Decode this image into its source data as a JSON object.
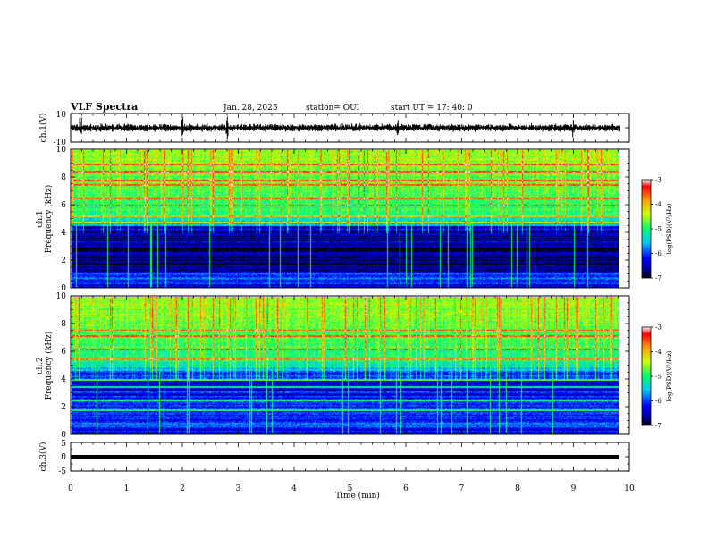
{
  "header": {
    "title": "VLF Spectra",
    "date": "Jan. 28, 2025",
    "station": "station= OUI",
    "start": "start  UT  =   17: 40: 0"
  },
  "chart_data": [
    {
      "type": "line",
      "panel": "ch1-waveform",
      "ylabel": "ch.1(V)",
      "ylim": [
        -10,
        10
      ],
      "ytick_labels": [
        "10",
        "-10"
      ],
      "xlim": [
        0,
        10
      ],
      "description_values": {
        "baseline_V": 0,
        "spikes_at_min": [
          0.18,
          2.0,
          2.8,
          5.85,
          9.0
        ]
      }
    },
    {
      "type": "heatmap",
      "panel": "ch1-spectrogram",
      "ylabel_line1": "ch.1",
      "ylabel_line2": "Frequency  (kHz)",
      "ylim": [
        0,
        10
      ],
      "ytick_labels": [
        "0",
        "2",
        "4",
        "6",
        "8",
        "10"
      ],
      "xlim": [
        0,
        10
      ],
      "data_end_min": 9.82,
      "colorbar": {
        "label": "log(PSD)(V²/Hz)",
        "range": [
          -7,
          -3
        ],
        "tick_labels": [
          "-3",
          "-4",
          "-5",
          "-6",
          "-7"
        ]
      }
    },
    {
      "type": "heatmap",
      "panel": "ch2-spectrogram",
      "ylabel_line1": "ch.2",
      "ylabel_line2": "Frequency  (kHz)",
      "ylim": [
        0,
        10
      ],
      "ytick_labels": [
        "0",
        "2",
        "4",
        "6",
        "8",
        "10"
      ],
      "xlim": [
        0,
        10
      ],
      "data_end_min": 9.82,
      "colorbar": {
        "label": "log(PSD)(V²/Hz)",
        "range": [
          -7,
          -3
        ],
        "tick_labels": [
          "-3",
          "-4",
          "-5",
          "-6",
          "-7"
        ]
      }
    },
    {
      "type": "line",
      "panel": "ch3-waveform",
      "ylabel": "ch.3(V)",
      "ylim": [
        -5,
        5
      ],
      "ytick_labels": [
        "5",
        "0",
        "-5"
      ],
      "xlim": [
        0,
        10
      ],
      "description_values": {
        "constant_V": 0
      }
    }
  ],
  "xaxis": {
    "label": "Time  (min)",
    "tick_labels": [
      "0",
      "1",
      "2",
      "3",
      "4",
      "5",
      "6",
      "7",
      "8",
      "9",
      "10"
    ],
    "range": [
      0,
      10
    ]
  },
  "colors": {
    "axis": "#000000",
    "background": "#ffffff",
    "colormap": [
      "#000000",
      "#00009a",
      "#0000ff",
      "#00c8ff",
      "#00ff6e",
      "#d2ff00",
      "#ff9600",
      "#ff0000",
      "#ffffff"
    ]
  }
}
